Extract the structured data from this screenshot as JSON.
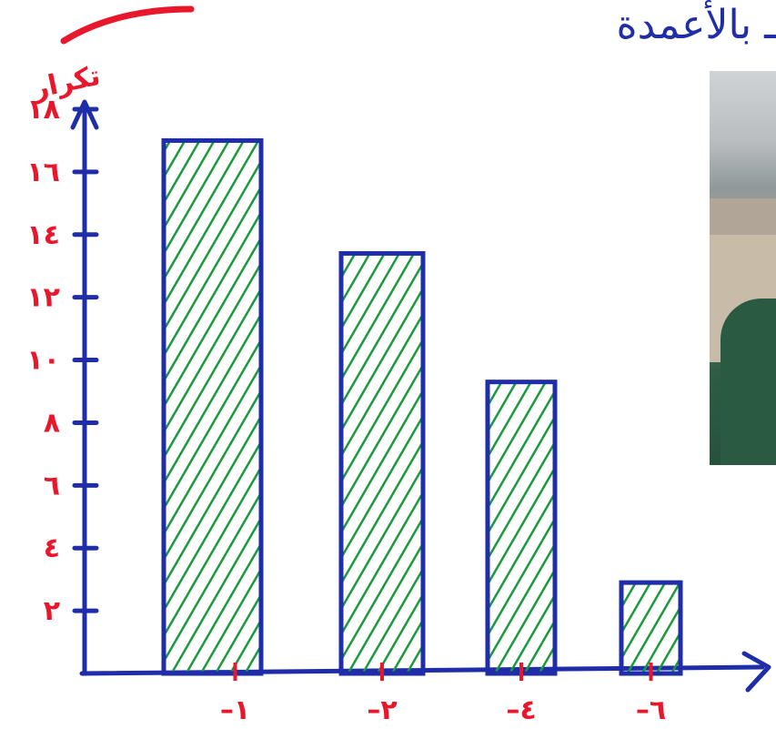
{
  "chart_data": {
    "type": "bar",
    "title": "ـ بالأعمدة",
    "ylabel": "تكرار",
    "xlabel": "",
    "categories": [
      "١",
      "٢",
      "٤",
      "٦"
    ],
    "values": [
      17,
      13.4,
      9.3,
      2.9
    ],
    "ylim": [
      0,
      18
    ],
    "yticks": [
      2,
      4,
      6,
      8,
      10,
      12,
      14,
      16,
      18
    ],
    "ytick_labels": [
      "٢",
      "٤",
      "٦",
      "٨",
      "١٠",
      "١٢",
      "١٤",
      "١٦",
      "١٨"
    ],
    "grid": false,
    "colors": {
      "axis": "#1f2ea8",
      "bar_outline": "#1f2ea8",
      "hatch": "#1a9a3c",
      "labels": "#e8172c"
    }
  }
}
